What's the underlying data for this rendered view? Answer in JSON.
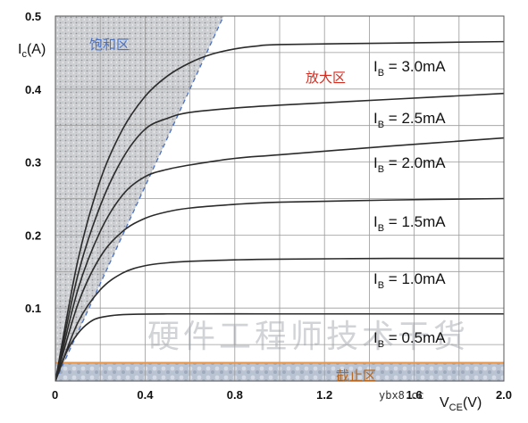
{
  "chart_data": {
    "type": "line",
    "xlabel": "V",
    "xlabel_sub": "CE",
    "xlabel_unit": "(V)",
    "ylabel": "I",
    "ylabel_sub": "c",
    "ylabel_unit": "(A)",
    "xlim": [
      0,
      2.0
    ],
    "ylim": [
      0,
      0.5
    ],
    "x_ticks": [
      "0",
      "0.4",
      "0.8",
      "1.2",
      "1.6",
      "2.0"
    ],
    "y_ticks": [
      "0.1",
      "0.2",
      "0.3",
      "0.4",
      "0.5"
    ],
    "grid": true,
    "series": [
      {
        "name": "0.5mA",
        "label_prefix": "I",
        "label_sub": "B",
        "label_value": " = 0.5mA",
        "x": [
          0,
          0.05,
          0.1,
          0.15,
          0.2,
          0.3,
          0.5,
          1.0,
          1.5,
          2.0
        ],
        "values": [
          0,
          0.04,
          0.065,
          0.08,
          0.087,
          0.091,
          0.092,
          0.092,
          0.092,
          0.092
        ]
      },
      {
        "name": "1.0mA",
        "label_prefix": "I",
        "label_sub": "B",
        "label_value": " = 1.0mA",
        "x": [
          0,
          0.1,
          0.2,
          0.3,
          0.4,
          0.5,
          0.6,
          0.8,
          1.0,
          1.5,
          2.0
        ],
        "values": [
          0,
          0.08,
          0.125,
          0.148,
          0.158,
          0.162,
          0.164,
          0.166,
          0.167,
          0.168,
          0.168
        ]
      },
      {
        "name": "1.5mA",
        "label_prefix": "I",
        "label_sub": "B",
        "label_value": " = 1.5mA",
        "x": [
          0,
          0.1,
          0.2,
          0.3,
          0.4,
          0.5,
          0.6,
          0.8,
          1.0,
          1.5,
          2.0
        ],
        "values": [
          0,
          0.105,
          0.17,
          0.205,
          0.223,
          0.232,
          0.237,
          0.242,
          0.245,
          0.248,
          0.25
        ]
      },
      {
        "name": "2.0mA",
        "label_prefix": "I",
        "label_sub": "B",
        "label_value": " = 2.0mA",
        "x": [
          0,
          0.1,
          0.2,
          0.3,
          0.4,
          0.5,
          0.6,
          0.8,
          1.0,
          1.5,
          2.0
        ],
        "values": [
          0,
          0.125,
          0.205,
          0.255,
          0.28,
          0.29,
          0.296,
          0.305,
          0.31,
          0.322,
          0.333
        ]
      },
      {
        "name": "2.5mA",
        "label_prefix": "I",
        "label_sub": "B",
        "label_value": " = 2.5mA",
        "x": [
          0,
          0.1,
          0.2,
          0.3,
          0.4,
          0.5,
          0.6,
          0.8,
          1.0,
          1.5,
          2.0
        ],
        "values": [
          0,
          0.145,
          0.24,
          0.305,
          0.345,
          0.36,
          0.368,
          0.374,
          0.378,
          0.386,
          0.394
        ]
      },
      {
        "name": "3.0mA",
        "label_prefix": "I",
        "label_sub": "B",
        "label_value": " = 3.0mA",
        "x": [
          0,
          0.1,
          0.2,
          0.3,
          0.4,
          0.5,
          0.6,
          0.7,
          0.8,
          0.9,
          1.0,
          1.5,
          2.0
        ],
        "values": [
          0,
          0.165,
          0.275,
          0.345,
          0.39,
          0.418,
          0.436,
          0.448,
          0.455,
          0.459,
          0.461,
          0.463,
          0.465
        ]
      }
    ],
    "regions": {
      "saturation": {
        "label": "饱和区",
        "boundary_top_x": 0.75,
        "color": "#4a72c9"
      },
      "active": {
        "label": "放大区",
        "color": "#d62d20"
      },
      "cutoff": {
        "label": "截止区",
        "y_max": 0.025,
        "color": "#b5651d",
        "line_color": "#e8954a"
      }
    }
  },
  "watermark": "硬件工程师技术干货",
  "site_label": "ybx8.cc"
}
